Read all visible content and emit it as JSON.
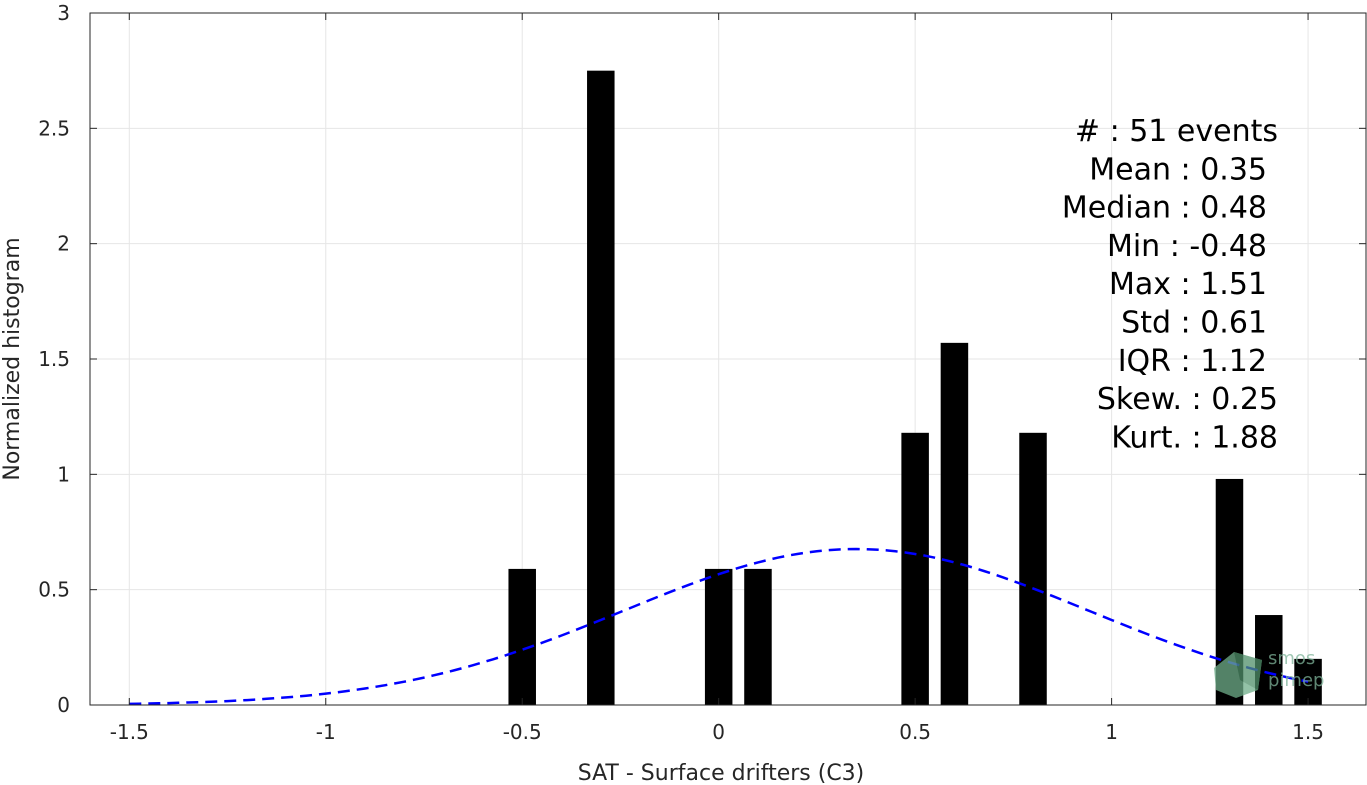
{
  "chart_data": {
    "type": "bar",
    "xlabel": "SAT - Surface drifters (C3)",
    "ylabel": "Normalized histogram",
    "xlim": [
      -1.6,
      1.65
    ],
    "ylim": [
      0,
      3
    ],
    "xticks": [
      -1.5,
      -1,
      -0.5,
      0,
      0.5,
      1,
      1.5
    ],
    "xtick_labels": [
      "-1.5",
      "-1",
      "-0.5",
      "0",
      "0.5",
      "1",
      "1.5"
    ],
    "yticks": [
      0,
      0.5,
      1,
      1.5,
      2,
      2.5,
      3
    ],
    "ytick_labels": [
      "0",
      "0.5",
      "1",
      "1.5",
      "2",
      "2.5",
      "3"
    ],
    "grid": true,
    "bin_width": 0.07,
    "bars": [
      {
        "x": -0.5,
        "value": 0.59
      },
      {
        "x": -0.3,
        "value": 2.75
      },
      {
        "x": 0.0,
        "value": 0.59
      },
      {
        "x": 0.1,
        "value": 0.59
      },
      {
        "x": 0.5,
        "value": 1.18
      },
      {
        "x": 0.6,
        "value": 1.57
      },
      {
        "x": 0.8,
        "value": 1.18
      },
      {
        "x": 1.3,
        "value": 0.98
      },
      {
        "x": 1.4,
        "value": 0.39
      },
      {
        "x": 1.5,
        "value": 0.2
      }
    ],
    "gaussian_fit": {
      "mean": 0.35,
      "std": 0.59,
      "x_range": [
        -1.5,
        1.5
      ],
      "style": "dashed",
      "color": "#0000ff"
    },
    "bar_color": "#000000",
    "stats": [
      {
        "label": "#",
        "sep": ": ",
        "value": "51 events"
      },
      {
        "label": "Mean",
        "sep": " : ",
        "value": "0.35"
      },
      {
        "label": "Median",
        "sep": " : ",
        "value": "0.48"
      },
      {
        "label": "Min",
        "sep": " : ",
        "value": "-0.48"
      },
      {
        "label": "Max",
        "sep": " : ",
        "value": "1.51"
      },
      {
        "label": "Std",
        "sep": " : ",
        "value": "0.61"
      },
      {
        "label": "IQR",
        "sep": " : ",
        "value": "1.12"
      },
      {
        "label": "Skew.",
        "sep": " : ",
        "value": "0.25"
      },
      {
        "label": "Kurt.",
        "sep": " : ",
        "value": "1.88"
      }
    ],
    "stats_lines": [
      "#  : 51 events",
      "Mean : 0.35",
      "Median : 0.48",
      "Min : -0.48",
      "Max : 1.51",
      "Std : 0.61",
      "IQR : 1.12",
      "Skew. : 0.25",
      "Kurt. : 1.88"
    ]
  },
  "watermark": {
    "line1": "smos",
    "line2": "pimep"
  }
}
